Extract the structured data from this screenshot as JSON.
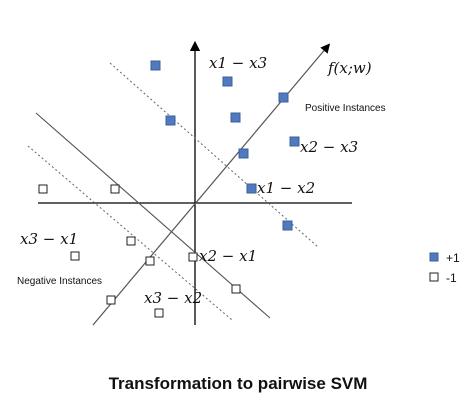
{
  "caption": "Transformation to pairwise SVM",
  "labels": {
    "decision_function": "f(x;w)",
    "positive_instances": "Positive Instances",
    "negative_instances": "Negative Instances",
    "diff_x1_x3": "x1 − x3",
    "diff_x2_x3": "x2 − x3",
    "diff_x1_x2": "x1 − x2",
    "diff_x2_x1": "x2 − x1",
    "diff_x3_x1": "x3 − x1",
    "diff_x3_x2": "x3 − x2"
  },
  "legend": {
    "positive": "+1",
    "negative": "-1"
  },
  "colors": {
    "positive_fill": "#4F7AC0",
    "positive_stroke": "#3C5F99",
    "negative_fill": "#ffffff",
    "negative_stroke": "#222222",
    "axis": "#000000",
    "solid_line": "#555555",
    "dotted_line": "#666666"
  }
}
